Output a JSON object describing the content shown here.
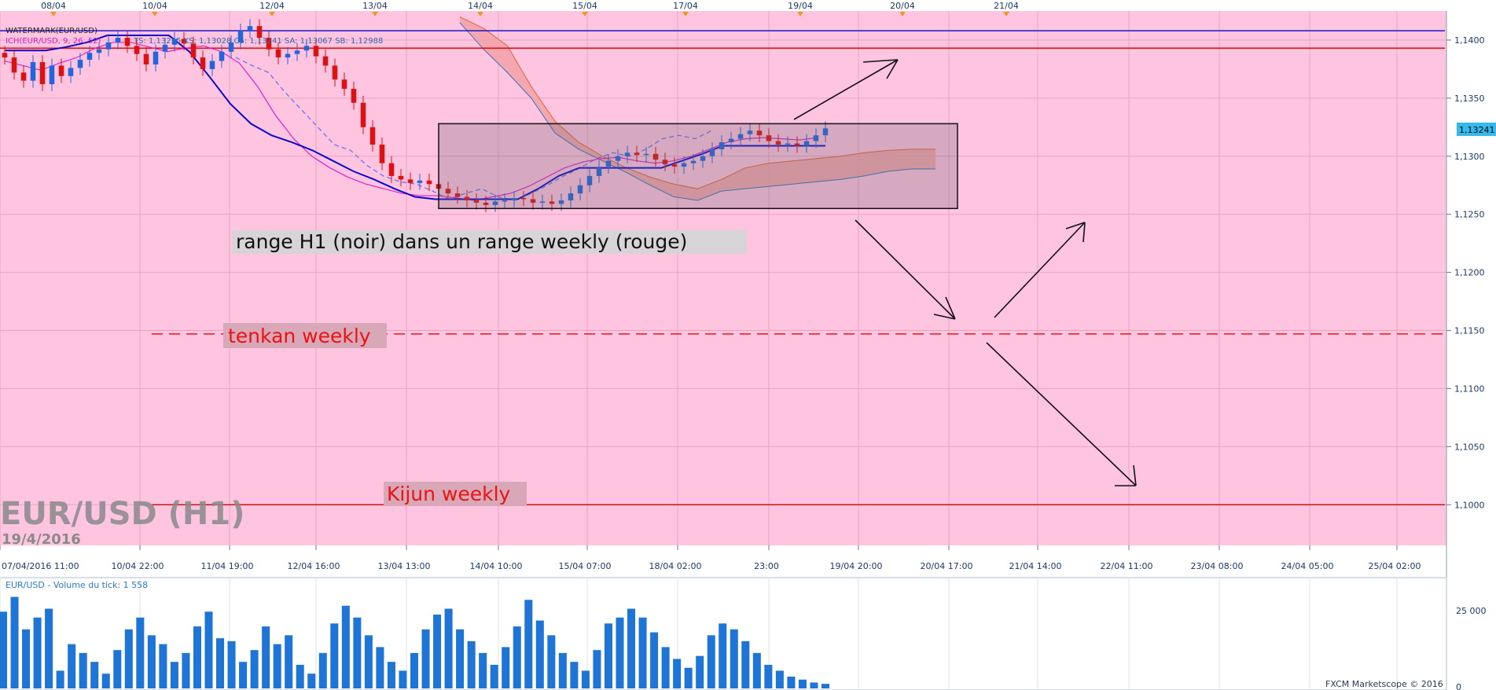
{
  "chart_data": {
    "type": "candlestick",
    "instrument": "EUR/USD (H1)",
    "watermark": "WATERMARK(EUR/USD)",
    "watermark_date": "19/4/2016",
    "indicator_label_1": "ICH(EUR/USD, 9, 26, 52)",
    "indicator_label_2": "TS: 1,13215   KS: 1,13028   CS: 1,13241   SA: 1,13067   SB: 1,12988",
    "volume_label": "EUR/USD - Volume du tick: 1 558",
    "current_price": "1,13241",
    "credit": "FXCM Marketscope © 2016",
    "top_date_ticks": [
      "08/04",
      "10/04",
      "12/04",
      "13/04",
      "14/04",
      "15/04",
      "17/04",
      "19/04",
      "20/04",
      "21/04"
    ],
    "bottom_time_ticks": [
      "07/04/2016 11:00",
      "10/04 22:00",
      "11/04 19:00",
      "12/04 16:00",
      "13/04 13:00",
      "14/04 10:00",
      "15/04 07:00",
      "18/04 02:00",
      "23:00",
      "19/04 20:00",
      "20/04 17:00",
      "21/04 14:00",
      "22/04 11:00",
      "23/04 08:00",
      "24/04 05:00",
      "25/04 02:00"
    ],
    "y_ticks": [
      "1,1400",
      "1,1350",
      "1,1300",
      "1,1250",
      "1,1200",
      "1,1150",
      "1,1100",
      "1,1050",
      "1,1000"
    ],
    "y_tick_values": [
      1.14,
      1.135,
      1.13,
      1.125,
      1.12,
      1.115,
      1.11,
      1.105,
      1.1
    ],
    "ylim": [
      1.0965,
      1.1425
    ],
    "volume_ticks": [
      "25 000",
      "0"
    ],
    "volume_max": 33000,
    "horizontal_levels": [
      {
        "value": 1.1408,
        "color": "#1a1acc",
        "style": "solid"
      },
      {
        "value": 1.1393,
        "color": "#dd1111",
        "style": "solid"
      },
      {
        "value": 1.1147,
        "color": "#ee2222",
        "style": "dashed"
      },
      {
        "value": 1.1,
        "color": "#cc1111",
        "style": "solid"
      }
    ],
    "range_box": {
      "high": 1.1328,
      "low": 1.1255
    },
    "close_series": [
      1.1385,
      1.1372,
      1.1365,
      1.1381,
      1.1362,
      1.1378,
      1.1369,
      1.1376,
      1.1383,
      1.1389,
      1.1392,
      1.1398,
      1.1402,
      1.1395,
      1.1388,
      1.1379,
      1.139,
      1.1396,
      1.1401,
      1.1397,
      1.1385,
      1.1375,
      1.1382,
      1.139,
      1.1398,
      1.1408,
      1.1412,
      1.1402,
      1.1392,
      1.1385,
      1.1388,
      1.1391,
      1.1395,
      1.1386,
      1.1378,
      1.1366,
      1.1358,
      1.1346,
      1.1325,
      1.131,
      1.1294,
      1.1283,
      1.128,
      1.1277,
      1.1279,
      1.1276,
      1.1272,
      1.1268,
      1.1265,
      1.1262,
      1.126,
      1.1258,
      1.1261,
      1.1262,
      1.1264,
      1.1263,
      1.126,
      1.1261,
      1.1259,
      1.1262,
      1.1268,
      1.1275,
      1.1283,
      1.1291,
      1.1296,
      1.13,
      1.1303,
      1.1301,
      1.1302,
      1.1297,
      1.1293,
      1.1291,
      1.1294,
      1.1296,
      1.13,
      1.1306,
      1.1312,
      1.1315,
      1.1319,
      1.1322,
      1.1318,
      1.1313,
      1.131,
      1.1311,
      1.1309,
      1.1313,
      1.1318,
      1.1324
    ],
    "tenkan_series": [
      1.1382,
      1.1378,
      1.1374,
      1.138,
      1.1385,
      1.1393,
      1.1398,
      1.1398,
      1.1394,
      1.139,
      1.1393,
      1.1395,
      1.139,
      1.138,
      1.136,
      1.1335,
      1.1315,
      1.13,
      1.129,
      1.1282,
      1.1276,
      1.1272,
      1.1268,
      1.1266,
      1.1266,
      1.1264,
      1.1262,
      1.1265,
      1.1268,
      1.1274,
      1.1282,
      1.129,
      1.1295,
      1.1298,
      1.1299,
      1.1296,
      1.1294,
      1.1296,
      1.13,
      1.1306,
      1.1312,
      1.1315,
      1.1316,
      1.1315,
      1.1314,
      1.1316
    ],
    "kijun_series": [
      1.1391,
      1.1391,
      1.1391,
      1.1394,
      1.1398,
      1.1404,
      1.1404,
      1.1404,
      1.1404,
      1.139,
      1.1368,
      1.1345,
      1.1328,
      1.1318,
      1.1312,
      1.1305,
      1.1296,
      1.1287,
      1.128,
      1.1272,
      1.1265,
      1.1263,
      1.1263,
      1.1263,
      1.1263,
      1.1263,
      1.1272,
      1.1283,
      1.129,
      1.129,
      1.129,
      1.129,
      1.129,
      1.1296,
      1.1302,
      1.1309,
      1.1309,
      1.1309,
      1.1309,
      1.1309,
      1.1309
    ],
    "chikou_series": [
      1.1385,
      1.1378,
      1.1372,
      1.1355,
      1.134,
      1.1325,
      1.131,
      1.1305,
      1.1292,
      1.1283,
      1.1278,
      1.1276,
      1.127,
      1.1263,
      1.1268,
      1.1272,
      1.1265,
      1.1262,
      1.1268,
      1.1275,
      1.1283,
      1.129,
      1.1298,
      1.1303,
      1.13,
      1.1306,
      1.1315,
      1.1318,
      1.1315,
      1.1322
    ],
    "span_a_series": [
      1.142,
      1.141,
      1.1395,
      1.136,
      1.133,
      1.1312,
      1.13,
      1.129,
      1.1282,
      1.1276,
      1.1272,
      1.128,
      1.129,
      1.1294,
      1.1296,
      1.1298,
      1.13,
      1.1303,
      1.1305,
      1.1306,
      1.1306
    ],
    "span_b_series": [
      1.1415,
      1.1392,
      1.1372,
      1.135,
      1.132,
      1.1306,
      1.1296,
      1.1286,
      1.1275,
      1.1265,
      1.1262,
      1.127,
      1.1272,
      1.1274,
      1.1276,
      1.1278,
      1.128,
      1.1283,
      1.1287,
      1.1289,
      1.1289
    ],
    "volume_series": [
      26000,
      31000,
      20000,
      24000,
      27000,
      6000,
      15000,
      12000,
      9000,
      5000,
      13000,
      20000,
      24000,
      18000,
      15000,
      9000,
      12000,
      21000,
      26000,
      17000,
      16000,
      9000,
      13000,
      21000,
      15000,
      18000,
      8000,
      5000,
      12000,
      22000,
      28000,
      24000,
      18000,
      14000,
      9000,
      6000,
      12000,
      20000,
      25000,
      27000,
      20000,
      16000,
      12000,
      8000,
      14000,
      21000,
      30000,
      23000,
      18000,
      12000,
      9000,
      6000,
      13000,
      22000,
      24000,
      27000,
      24000,
      19000,
      14000,
      10000,
      7000,
      11000,
      18000,
      22000,
      20000,
      16000,
      12000,
      8000,
      6000,
      4000,
      3000,
      2000,
      1558
    ]
  },
  "annotations": {
    "range_text": "range H1 (noir)  dans un range weekly (rouge)",
    "tenkan_text": "tenkan weekly",
    "kijun_text": "Kijun weekly"
  },
  "colors": {
    "plot_bg": "#ffc4e0",
    "bull": "#2266dd",
    "bear": "#dd1111",
    "tenkan": "#dd22cc",
    "kijun": "#0a0acc",
    "chikou": "#6677ee",
    "cloud_bear": "#f2a2a8",
    "cloud_bull": "#a9c4e0",
    "volume_bar": "#1f75d6",
    "axis_text": "#1a3a6b"
  }
}
